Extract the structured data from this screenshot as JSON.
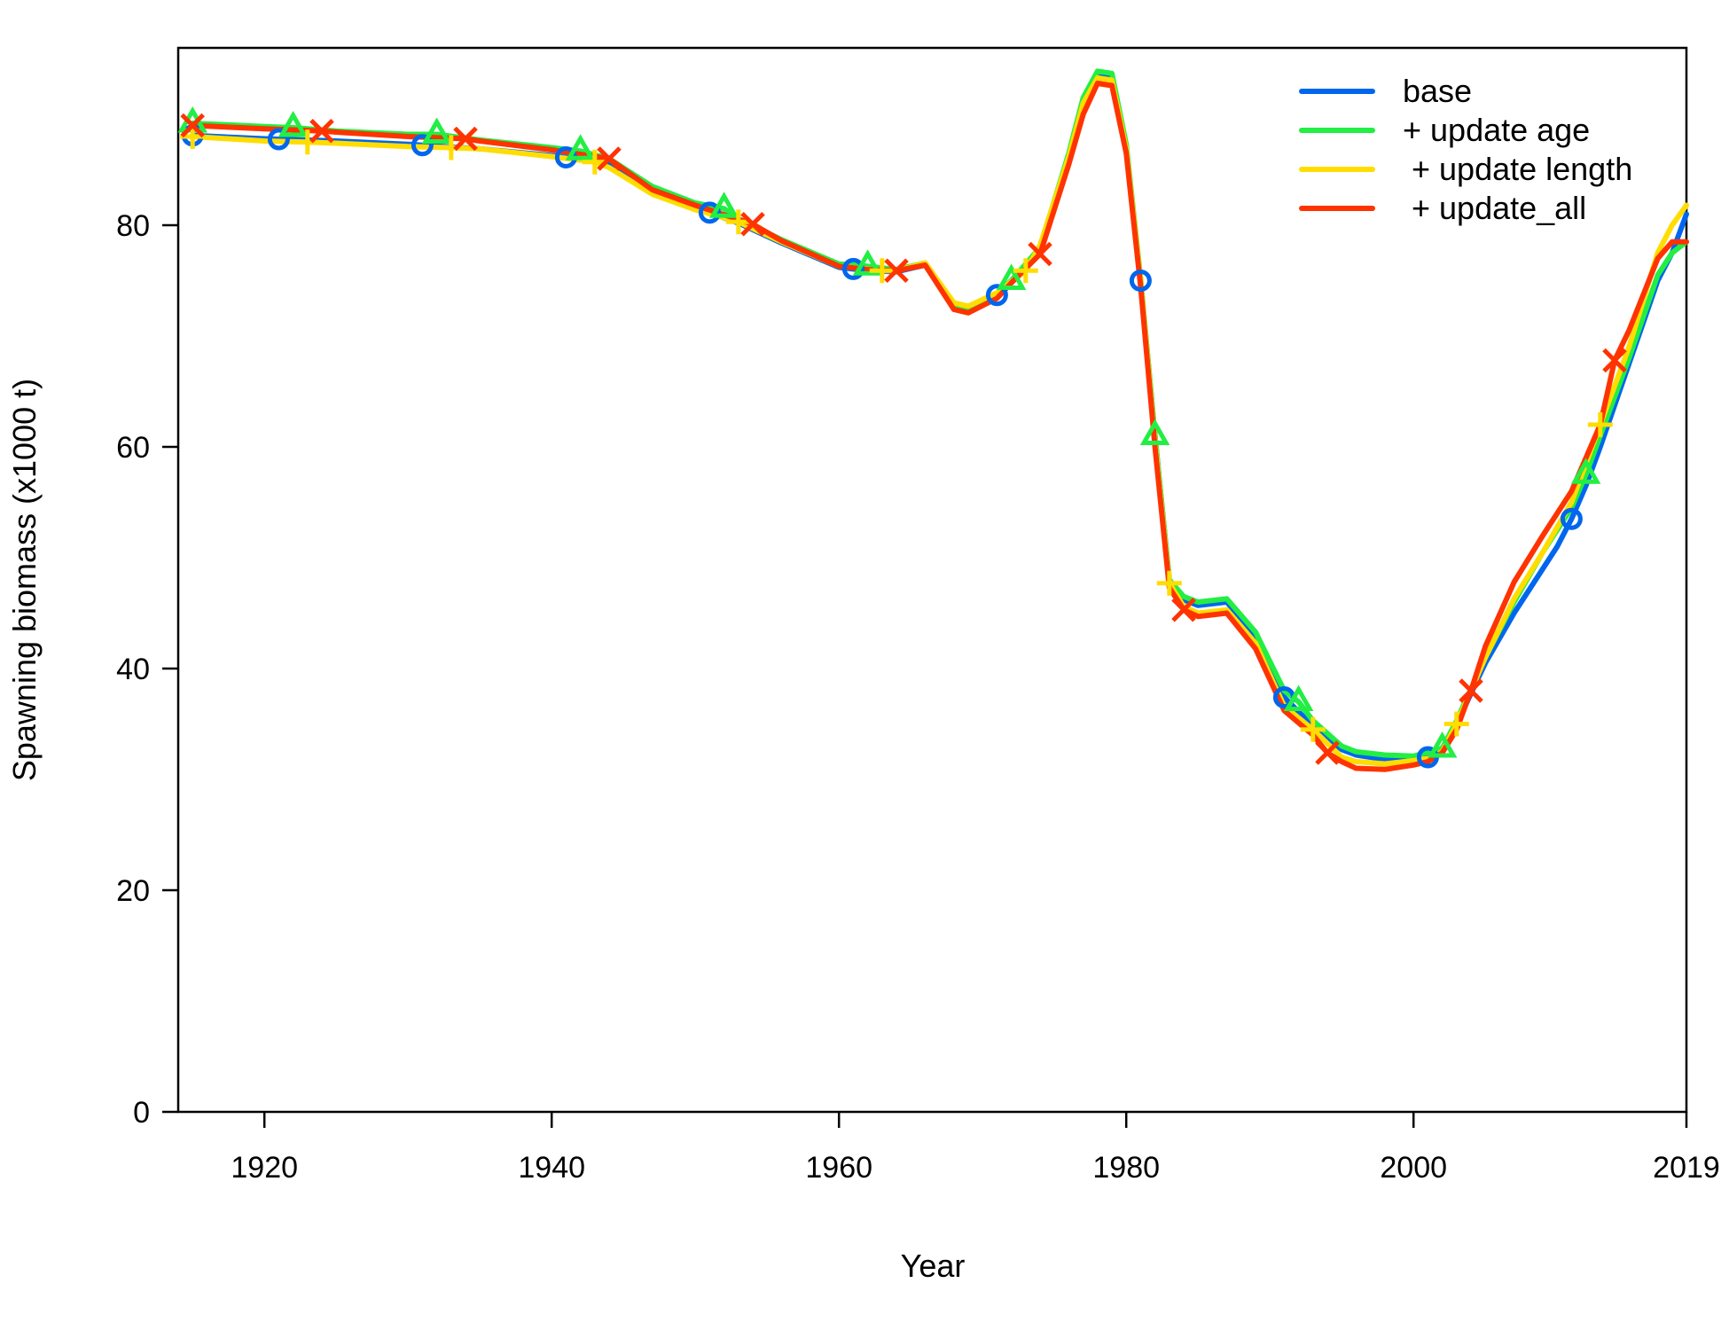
{
  "chart_data": {
    "type": "line",
    "title": "",
    "xlabel": "Year",
    "ylabel": "Spawning biomass (x1000 t)",
    "xlim": [
      1914,
      2019
    ],
    "ylim": [
      0,
      96
    ],
    "x_ticks": [
      1920,
      1940,
      1960,
      1980,
      2000,
      2019
    ],
    "y_ticks": [
      0,
      20,
      40,
      60,
      80
    ],
    "grid": false,
    "legend_position": "top-right",
    "series": [
      {
        "name": "base",
        "color": "#0066ee",
        "marker": "circle",
        "marker_years": [
          1915,
          1921,
          1931,
          1941,
          1951,
          1961,
          1971,
          1981,
          1991,
          2001,
          2011
        ],
        "points": [
          [
            1915,
            88.1
          ],
          [
            1920,
            87.8
          ],
          [
            1925,
            87.6
          ],
          [
            1930,
            87.3
          ],
          [
            1935,
            86.9
          ],
          [
            1940,
            86.3
          ],
          [
            1944,
            85.6
          ],
          [
            1947,
            83.0
          ],
          [
            1950,
            81.6
          ],
          [
            1953,
            80.2
          ],
          [
            1956,
            78.4
          ],
          [
            1960,
            76.2
          ],
          [
            1962,
            75.9
          ],
          [
            1964,
            75.8
          ],
          [
            1966,
            76.4
          ],
          [
            1968,
            72.7
          ],
          [
            1969,
            72.4
          ],
          [
            1971,
            73.7
          ],
          [
            1972,
            75.0
          ],
          [
            1974,
            77.8
          ],
          [
            1976,
            86.0
          ],
          [
            1977,
            91.0
          ],
          [
            1978,
            93.6
          ],
          [
            1979,
            93.3
          ],
          [
            1980,
            87.0
          ],
          [
            1981,
            75.0
          ],
          [
            1982,
            61.0
          ],
          [
            1983,
            48.0
          ],
          [
            1984,
            46.2
          ],
          [
            1985,
            45.7
          ],
          [
            1987,
            46.0
          ],
          [
            1989,
            43.0
          ],
          [
            1991,
            37.4
          ],
          [
            1993,
            34.8
          ],
          [
            1995,
            32.7
          ],
          [
            1996,
            32.2
          ],
          [
            1998,
            31.8
          ],
          [
            2000,
            31.9
          ],
          [
            2001,
            32.0
          ],
          [
            2002,
            32.8
          ],
          [
            2003,
            35.0
          ],
          [
            2005,
            40.5
          ],
          [
            2007,
            45.0
          ],
          [
            2009,
            49.0
          ],
          [
            2010,
            51.0
          ],
          [
            2011,
            53.5
          ],
          [
            2012,
            56.5
          ],
          [
            2013,
            60.0
          ],
          [
            2015,
            67.5
          ],
          [
            2017,
            75.0
          ],
          [
            2018,
            77.5
          ],
          [
            2019,
            81.0
          ]
        ]
      },
      {
        "name": "+ update age",
        "color": "#22ee44",
        "marker": "triangle",
        "marker_years": [
          1915,
          1922,
          1932,
          1942,
          1952,
          1962,
          1972,
          1982,
          1992,
          2002,
          2012
        ],
        "points": [
          [
            1915,
            89.2
          ],
          [
            1920,
            88.9
          ],
          [
            1922,
            88.8
          ],
          [
            1925,
            88.5
          ],
          [
            1930,
            88.2
          ],
          [
            1932,
            88.2
          ],
          [
            1935,
            87.7
          ],
          [
            1940,
            87.0
          ],
          [
            1942,
            86.7
          ],
          [
            1944,
            86.0
          ],
          [
            1947,
            83.5
          ],
          [
            1950,
            82.0
          ],
          [
            1952,
            81.5
          ],
          [
            1953,
            80.6
          ],
          [
            1956,
            78.7
          ],
          [
            1960,
            76.5
          ],
          [
            1962,
            76.3
          ],
          [
            1964,
            76.0
          ],
          [
            1966,
            76.6
          ],
          [
            1968,
            72.8
          ],
          [
            1969,
            72.5
          ],
          [
            1971,
            73.8
          ],
          [
            1972,
            75.0
          ],
          [
            1974,
            78.0
          ],
          [
            1976,
            86.5
          ],
          [
            1977,
            91.5
          ],
          [
            1978,
            93.9
          ],
          [
            1979,
            93.7
          ],
          [
            1980,
            87.3
          ],
          [
            1981,
            75.2
          ],
          [
            1982,
            61.0
          ],
          [
            1983,
            48.0
          ],
          [
            1984,
            46.5
          ],
          [
            1985,
            46.0
          ],
          [
            1987,
            46.3
          ],
          [
            1989,
            43.3
          ],
          [
            1991,
            38.0
          ],
          [
            1992,
            37.0
          ],
          [
            1993,
            35.3
          ],
          [
            1995,
            33.0
          ],
          [
            1996,
            32.5
          ],
          [
            1998,
            32.2
          ],
          [
            2000,
            32.1
          ],
          [
            2002,
            32.8
          ],
          [
            2003,
            35.3
          ],
          [
            2005,
            41.0
          ],
          [
            2007,
            46.0
          ],
          [
            2009,
            50.5
          ],
          [
            2011,
            54.5
          ],
          [
            2012,
            57.5
          ],
          [
            2013,
            61.0
          ],
          [
            2015,
            68.0
          ],
          [
            2017,
            75.5
          ],
          [
            2018,
            77.5
          ],
          [
            2019,
            78.5
          ]
        ]
      },
      {
        "name": " + update length",
        "color": "#ffdd00",
        "marker": "plus",
        "marker_years": [
          1915,
          1923,
          1933,
          1943,
          1953,
          1963,
          1973,
          1983,
          1993,
          2003,
          2013
        ],
        "points": [
          [
            1915,
            88.0
          ],
          [
            1920,
            87.6
          ],
          [
            1923,
            87.5
          ],
          [
            1925,
            87.4
          ],
          [
            1930,
            87.1
          ],
          [
            1933,
            87.0
          ],
          [
            1935,
            86.9
          ],
          [
            1940,
            86.2
          ],
          [
            1943,
            85.7
          ],
          [
            1944,
            85.2
          ],
          [
            1947,
            82.8
          ],
          [
            1950,
            81.4
          ],
          [
            1953,
            80.3
          ],
          [
            1956,
            78.5
          ],
          [
            1960,
            76.3
          ],
          [
            1963,
            75.9
          ],
          [
            1964,
            75.9
          ],
          [
            1966,
            76.6
          ],
          [
            1968,
            73.0
          ],
          [
            1969,
            72.7
          ],
          [
            1971,
            73.9
          ],
          [
            1973,
            75.9
          ],
          [
            1974,
            78.2
          ],
          [
            1976,
            86.2
          ],
          [
            1977,
            91.0
          ],
          [
            1978,
            93.3
          ],
          [
            1979,
            93.1
          ],
          [
            1980,
            86.9
          ],
          [
            1981,
            75.0
          ],
          [
            1982,
            60.5
          ],
          [
            1983,
            47.7
          ],
          [
            1984,
            45.6
          ],
          [
            1985,
            45.0
          ],
          [
            1987,
            45.3
          ],
          [
            1989,
            42.3
          ],
          [
            1991,
            36.6
          ],
          [
            1993,
            34.5
          ],
          [
            1995,
            32.0
          ],
          [
            1996,
            31.6
          ],
          [
            1998,
            31.4
          ],
          [
            2000,
            31.7
          ],
          [
            2001,
            31.9
          ],
          [
            2002,
            32.5
          ],
          [
            2003,
            35.0
          ],
          [
            2005,
            41.0
          ],
          [
            2007,
            46.3
          ],
          [
            2009,
            50.5
          ],
          [
            2011,
            55.0
          ],
          [
            2012,
            58.5
          ],
          [
            2013,
            62.0
          ],
          [
            2015,
            69.0
          ],
          [
            2017,
            77.5
          ],
          [
            2018,
            80.0
          ],
          [
            2019,
            81.8
          ]
        ]
      },
      {
        "name": " + update_all",
        "color": "#ff3300",
        "marker": "x",
        "marker_years": [
          1915,
          1924,
          1934,
          1944,
          1954,
          1964,
          1974,
          1984,
          1994,
          2004,
          2014
        ],
        "points": [
          [
            1915,
            89.0
          ],
          [
            1920,
            88.7
          ],
          [
            1924,
            88.5
          ],
          [
            1925,
            88.4
          ],
          [
            1930,
            88.0
          ],
          [
            1934,
            87.8
          ],
          [
            1935,
            87.6
          ],
          [
            1940,
            86.8
          ],
          [
            1944,
            86.0
          ],
          [
            1947,
            83.2
          ],
          [
            1950,
            81.8
          ],
          [
            1954,
            80.1
          ],
          [
            1956,
            78.6
          ],
          [
            1960,
            76.3
          ],
          [
            1962,
            76.0
          ],
          [
            1964,
            75.9
          ],
          [
            1966,
            76.4
          ],
          [
            1968,
            72.4
          ],
          [
            1969,
            72.1
          ],
          [
            1971,
            73.4
          ],
          [
            1972,
            74.8
          ],
          [
            1974,
            77.4
          ],
          [
            1976,
            85.5
          ],
          [
            1977,
            90.0
          ],
          [
            1978,
            92.8
          ],
          [
            1979,
            92.6
          ],
          [
            1980,
            86.5
          ],
          [
            1981,
            74.5
          ],
          [
            1982,
            60.0
          ],
          [
            1983,
            47.3
          ],
          [
            1984,
            45.3
          ],
          [
            1985,
            44.7
          ],
          [
            1987,
            45.0
          ],
          [
            1989,
            41.8
          ],
          [
            1991,
            36.2
          ],
          [
            1993,
            34.0
          ],
          [
            1994,
            32.4
          ],
          [
            1995,
            31.6
          ],
          [
            1996,
            31.0
          ],
          [
            1998,
            30.9
          ],
          [
            2000,
            31.3
          ],
          [
            2001,
            31.6
          ],
          [
            2002,
            32.4
          ],
          [
            2003,
            34.5
          ],
          [
            2004,
            38.0
          ],
          [
            2005,
            42.0
          ],
          [
            2007,
            47.8
          ],
          [
            2009,
            52.0
          ],
          [
            2011,
            56.0
          ],
          [
            2013,
            62.0
          ],
          [
            2014,
            67.8
          ],
          [
            2015,
            70.5
          ],
          [
            2017,
            77.0
          ],
          [
            2018,
            78.5
          ],
          [
            2019,
            78.5
          ]
        ]
      }
    ]
  }
}
